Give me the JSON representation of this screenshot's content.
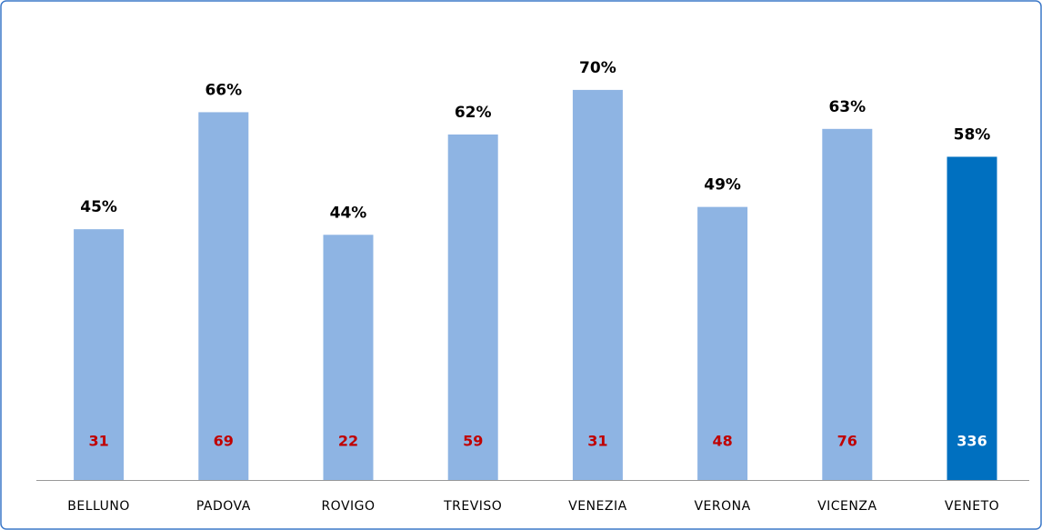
{
  "chart_data": {
    "type": "bar",
    "categories": [
      "BELLUNO",
      "PADOVA",
      "ROVIGO",
      "TREVISO",
      "VENEZIA",
      "VERONA",
      "VICENZA",
      "VENETO"
    ],
    "values": [
      45,
      66,
      44,
      62,
      70,
      49,
      63,
      58
    ],
    "value_labels": [
      "45%",
      "66%",
      "44%",
      "62%",
      "70%",
      "49%",
      "63%",
      "58%"
    ],
    "counts": [
      31,
      69,
      22,
      59,
      31,
      48,
      76,
      336
    ],
    "colors": [
      "#8eb4e3",
      "#8eb4e3",
      "#8eb4e3",
      "#8eb4e3",
      "#8eb4e3",
      "#8eb4e3",
      "#8eb4e3",
      "#0070c0"
    ],
    "count_colors": [
      "#c00000",
      "#c00000",
      "#c00000",
      "#c00000",
      "#c00000",
      "#c00000",
      "#c00000",
      "#ffffff"
    ]
  }
}
